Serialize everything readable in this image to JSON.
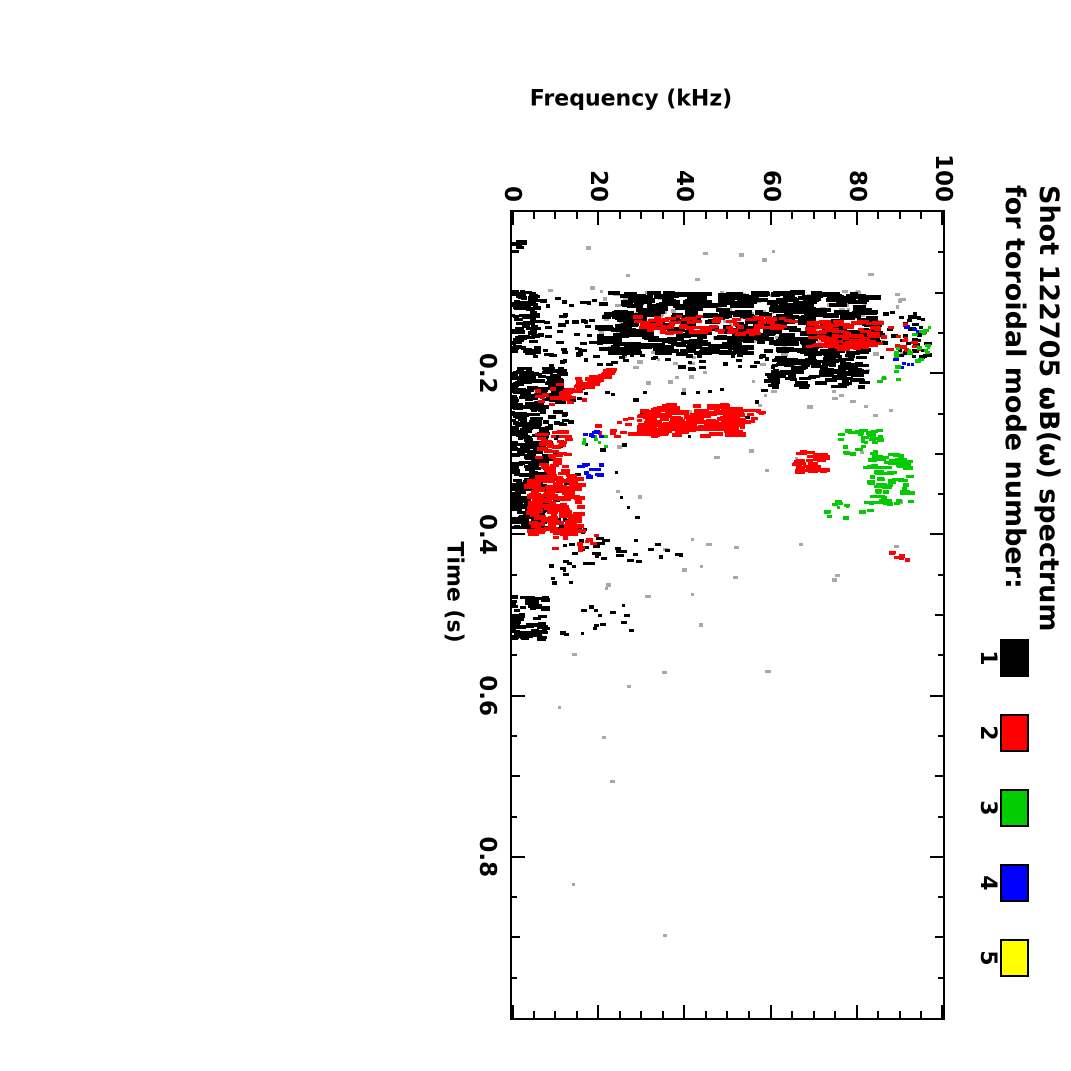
{
  "chart_data": {
    "type": "scatter",
    "note": "Spectrogram-style mode plot rendered rotated 90 degrees clockwise; clusters give dense pixel regions, t in seconds, f in kHz",
    "title_line1": "Shot 122705 ωB(ω) spectrum",
    "title_line2": "for toroidal mode number:",
    "xlabel": "Time (s)",
    "ylabel": "Frequency (kHz)",
    "xlim": [
      0,
      1.0
    ],
    "ylim": [
      0,
      100
    ],
    "x_major_ticks": [
      0.2,
      0.4,
      0.6,
      0.8
    ],
    "x_tick_labels": [
      "0.2",
      "0.4",
      "0.6",
      "0.8"
    ],
    "x_minor_step": 0.05,
    "y_major_ticks": [
      0,
      20,
      40,
      60,
      80,
      100
    ],
    "y_tick_labels": [
      "0",
      "20",
      "40",
      "60",
      "80",
      "100"
    ],
    "y_minor_step": 5,
    "legend": {
      "items": [
        {
          "label": "1",
          "color": "#000000"
        },
        {
          "label": "2",
          "color": "#ff0000"
        },
        {
          "label": "3",
          "color": "#00cc00"
        },
        {
          "label": "4",
          "color": "#0000ff"
        },
        {
          "label": "5",
          "color": "#ffff00"
        }
      ]
    },
    "speckle": {
      "name": "unlabeled gray speckle",
      "color": "#a8a8a8",
      "clusters": [
        {
          "t": [
            0.098,
            0.19
          ],
          "f": [
            20,
            92
          ],
          "n": 120,
          "mh": [
            3,
            7
          ]
        },
        {
          "t": [
            0.19,
            0.26
          ],
          "f": [
            28,
            88
          ],
          "n": 26,
          "mh": [
            3,
            6
          ]
        },
        {
          "t": [
            0.04,
            0.098
          ],
          "f": [
            5,
            90
          ],
          "n": 10,
          "mh": [
            3,
            6
          ]
        },
        {
          "t": [
            0.26,
            0.46
          ],
          "f": [
            18,
            96
          ],
          "n": 22,
          "mh": [
            3,
            6
          ]
        },
        {
          "t": [
            0.46,
            0.62
          ],
          "f": [
            4,
            60
          ],
          "n": 12,
          "mh": [
            3,
            6
          ]
        },
        {
          "t": [
            0.62,
            0.9
          ],
          "f": [
            2,
            40
          ],
          "n": 4,
          "mh": [
            3,
            5
          ]
        }
      ]
    },
    "series": [
      {
        "name": "toroidal mode n=1",
        "label": "1",
        "color": "#000000",
        "clusters": [
          {
            "t": [
              0.033,
              0.05
            ],
            "f": [
              0.5,
              3
            ],
            "n": 7
          },
          {
            "t": [
              0.098,
              0.178
            ],
            "f": [
              0,
              6
            ],
            "n": 110,
            "mh": [
              5,
              10
            ]
          },
          {
            "t": [
              0.1,
              0.176
            ],
            "f": [
              21,
              84
            ],
            "n": 470,
            "mw": 4,
            "mh": [
              8,
              18
            ]
          },
          {
            "t": [
              0.103,
              0.18
            ],
            "f": [
              6,
              21
            ],
            "n": 45,
            "mh": [
              4,
              8
            ]
          },
          {
            "t": [
              0.122,
              0.182
            ],
            "f": [
              84,
              97
            ],
            "n": 40,
            "mh": [
              4,
              8
            ]
          },
          {
            "t": [
              0.176,
              0.196
            ],
            "f": [
              5,
              62
            ],
            "n": 38,
            "mh": [
              4,
              8
            ]
          },
          {
            "t": [
              0.178,
              0.218
            ],
            "f": [
              60,
              82
            ],
            "n": 130,
            "mh": [
              6,
              14
            ]
          },
          {
            "t": [
              0.194,
              0.236
            ],
            "f": [
              0,
              12
            ],
            "n": 120,
            "mh": [
              6,
              12
            ]
          },
          {
            "t": [
              0.236,
              0.392
            ],
            "f": [
              0,
              8
            ],
            "n": 280,
            "mh": [
              5,
              11
            ]
          },
          {
            "t": [
              0.24,
              0.4
            ],
            "f": [
              8,
              13
            ],
            "n": 45,
            "mh": [
              4,
              8
            ]
          },
          {
            "t": [
              0.218,
              0.28
            ],
            "f": [
              13,
              60
            ],
            "n": 20,
            "mh": [
              3,
              7
            ]
          },
          {
            "t": [
              0.28,
              0.4
            ],
            "f": [
              13,
              30
            ],
            "n": 12,
            "mh": [
              3,
              6
            ]
          },
          {
            "t": [
              0.405,
              0.437
            ],
            "f": [
              12,
              30
            ],
            "n": 26,
            "mh": [
              4,
              8
            ]
          },
          {
            "t": [
              0.408,
              0.428
            ],
            "f": [
              32,
              40
            ],
            "n": 6,
            "mh": [
              3,
              6
            ]
          },
          {
            "t": [
              0.438,
              0.462
            ],
            "f": [
              9,
              16
            ],
            "n": 8,
            "mh": [
              3,
              6
            ]
          },
          {
            "t": [
              0.478,
              0.532
            ],
            "f": [
              0,
              8
            ],
            "n": 80,
            "mh": [
              5,
              10
            ]
          },
          {
            "t": [
              0.488,
              0.528
            ],
            "f": [
              10,
              28
            ],
            "n": 15,
            "mh": [
              3,
              7
            ]
          }
        ]
      },
      {
        "name": "toroidal mode n=2",
        "label": "2",
        "color": "#ff0000",
        "clusters": [
          {
            "t": [
              0.13,
              0.137
            ],
            "f": [
              28,
              66
            ],
            "n": 34,
            "mh": [
              6,
              12
            ]
          },
          {
            "t": [
              0.139,
              0.145
            ],
            "f": [
              28,
              64
            ],
            "n": 30,
            "mh": [
              6,
              12
            ]
          },
          {
            "t": [
              0.146,
              0.152
            ],
            "f": [
              31,
              58
            ],
            "n": 22,
            "mh": [
              6,
              12
            ]
          },
          {
            "t": [
              0.136,
              0.17
            ],
            "f": [
              69,
              85
            ],
            "n": 95,
            "mh": [
              6,
              13
            ]
          },
          {
            "t": [
              0.14,
              0.172
            ],
            "f": [
              86,
              97
            ],
            "n": 16,
            "mh": [
              4,
              8
            ]
          },
          {
            "line": [
              [
                0.197,
                23.5
              ],
              [
                0.234,
                10.5
              ]
            ],
            "n": 60,
            "jitter": 1.4,
            "mh": [
              6,
              11
            ]
          },
          {
            "t": [
              0.205,
              0.24
            ],
            "f": [
              6,
              17
            ],
            "n": 14,
            "mh": [
              4,
              8
            ]
          },
          {
            "t": [
              0.24,
              0.278
            ],
            "f": [
              30,
              53
            ],
            "n": 150,
            "mw": 4,
            "mh": [
              7,
              14
            ]
          },
          {
            "t": [
              0.246,
              0.268
            ],
            "f": [
              53,
              58
            ],
            "n": 12,
            "mh": [
              4,
              8
            ]
          },
          {
            "t": [
              0.25,
              0.28
            ],
            "f": [
              20,
              30
            ],
            "n": 14,
            "mh": [
              4,
              8
            ]
          },
          {
            "t": [
              0.272,
              0.335
            ],
            "f": [
              6,
              14
            ],
            "n": 60,
            "mh": [
              5,
              10
            ]
          },
          {
            "t": [
              0.33,
              0.4
            ],
            "f": [
              4,
              16
            ],
            "n": 140,
            "mw": 4,
            "mh": [
              6,
              12
            ]
          },
          {
            "t": [
              0.298,
              0.324
            ],
            "f": [
              66,
              73
            ],
            "n": 45,
            "mh": [
              6,
              11
            ]
          },
          {
            "t": [
              0.42,
              0.433
            ],
            "f": [
              88,
              92
            ],
            "n": 6,
            "mh": [
              4,
              7
            ]
          },
          {
            "t": [
              0.4,
              0.42
            ],
            "f": [
              10,
              20
            ],
            "n": 10,
            "mh": [
              4,
              8
            ]
          }
        ]
      },
      {
        "name": "toroidal mode n=3",
        "label": "3",
        "color": "#00cc00",
        "clusters": [
          {
            "t": [
              0.3,
              0.363
            ],
            "f": [
              82,
              93
            ],
            "n": 85,
            "mh": [
              5,
              11
            ]
          },
          {
            "t": [
              0.268,
              0.302
            ],
            "f": [
              76,
              86
            ],
            "n": 30,
            "mh": [
              4,
              9
            ]
          },
          {
            "t": [
              0.16,
              0.186
            ],
            "f": [
              88,
              97
            ],
            "n": 12,
            "mh": [
              3,
              7
            ]
          },
          {
            "t": [
              0.143,
              0.156
            ],
            "f": [
              93,
              98
            ],
            "n": 6,
            "mh": [
              3,
              6
            ]
          },
          {
            "t": [
              0.272,
              0.292
            ],
            "f": [
              16,
              22
            ],
            "n": 7,
            "mh": [
              3,
              6
            ]
          },
          {
            "t": [
              0.358,
              0.382
            ],
            "f": [
              73,
              84
            ],
            "n": 12,
            "mh": [
              3,
              7
            ]
          },
          {
            "t": [
              0.19,
              0.21
            ],
            "f": [
              85,
              92
            ],
            "n": 5,
            "mh": [
              3,
              6
            ]
          }
        ]
      },
      {
        "name": "toroidal mode n=4",
        "label": "4",
        "color": "#0000ff",
        "clusters": [
          {
            "t": [
              0.312,
              0.331
            ],
            "f": [
              16,
              21
            ],
            "n": 14,
            "mh": [
              4,
              8
            ]
          },
          {
            "t": [
              0.269,
              0.279
            ],
            "f": [
              17,
              21
            ],
            "n": 6,
            "mh": [
              3,
              6
            ]
          },
          {
            "t": [
              0.183,
              0.193
            ],
            "f": [
              89,
              93
            ],
            "n": 5,
            "mh": [
              3,
              6
            ]
          },
          {
            "t": [
              0.14,
              0.152
            ],
            "f": [
              90,
              95
            ],
            "n": 4,
            "mh": [
              3,
              6
            ]
          }
        ]
      },
      {
        "name": "toroidal mode n=5",
        "label": "5",
        "color": "#ffff00",
        "clusters": []
      }
    ]
  }
}
